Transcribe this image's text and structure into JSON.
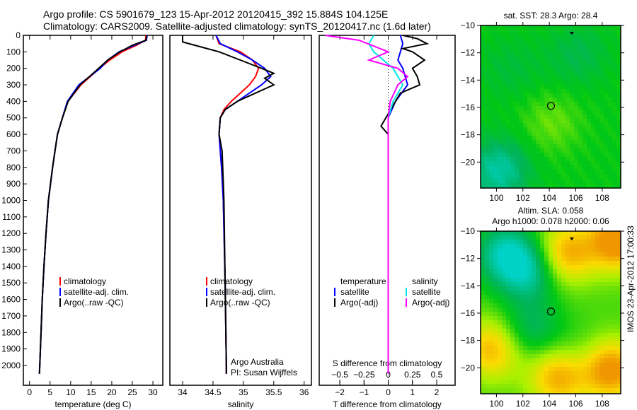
{
  "header": {
    "line1": "Argo profile: CS 5901679_123 15-Apr-2012 20120415_392 15.884S 104.125E",
    "line2": "Climatology: CARS2009. Satellite-adjusted climatology: synTS_20120417.nc (1.6d later)"
  },
  "side_label": "IMOS 23-Apr-2012 17:00:33",
  "chart_data": [
    {
      "type": "line",
      "title": "",
      "xlabel": "temperature (deg C)",
      "ylabel": "",
      "xlim": [
        -1.5,
        32.4
      ],
      "ylim": [
        2120,
        0
      ],
      "xticks": [
        0,
        5,
        10,
        15,
        20,
        25,
        30
      ],
      "yticks": [
        0,
        100,
        200,
        300,
        400,
        500,
        600,
        700,
        800,
        900,
        1000,
        1100,
        1200,
        1300,
        1400,
        1500,
        1600,
        1700,
        1800,
        1900,
        2000
      ],
      "legend": [
        "climatology",
        "satellite-adj. clim.",
        "Argo(..raw -QC)"
      ],
      "legend_position": "lower-right",
      "series": [
        {
          "name": "climatology",
          "color": "#ff0000",
          "depth": [
            0,
            30,
            60,
            100,
            150,
            200,
            300,
            400,
            500,
            600,
            700,
            800,
            1000,
            1200,
            1400,
            1600,
            1800,
            2000,
            2050
          ],
          "values": [
            28.3,
            28.2,
            26,
            22.5,
            19.5,
            17,
            12.5,
            9.3,
            8,
            6.8,
            6.2,
            5.6,
            4.6,
            4,
            3.5,
            3.1,
            2.8,
            2.5,
            2.4
          ]
        },
        {
          "name": "satellite-adj. clim.",
          "color": "#0000ff",
          "depth": [
            0,
            30,
            60,
            100,
            150,
            200,
            300,
            400,
            500,
            600,
            700,
            800,
            1000,
            1200,
            1400,
            1600,
            1800,
            2000,
            2050
          ],
          "values": [
            28.6,
            28.4,
            25.5,
            21.8,
            19,
            17.2,
            12,
            9.2,
            8,
            6.8,
            6.2,
            5.6,
            4.6,
            4,
            3.5,
            3.1,
            2.8,
            2.5,
            2.4
          ]
        },
        {
          "name": "Argo(..raw -QC)",
          "color": "#000000",
          "depth": [
            0,
            30,
            60,
            100,
            150,
            200,
            300,
            400,
            500,
            600,
            700,
            800,
            1000,
            1200,
            1400,
            1600,
            1800,
            2000,
            2050
          ],
          "values": [
            28.5,
            28.3,
            25,
            22,
            19,
            16.8,
            12.3,
            9.4,
            8,
            6.8,
            6.2,
            5.6,
            4.6,
            4,
            3.5,
            3.1,
            2.8,
            2.5,
            2.4
          ]
        }
      ]
    },
    {
      "type": "line",
      "xlabel": "salinity",
      "xlim": [
        33.79,
        36.12
      ],
      "ylim": [
        2120,
        0
      ],
      "xticks": [
        34,
        34.5,
        35,
        35.5,
        36
      ],
      "legend": [
        "climatology",
        "satellite-adj. clim.",
        "Argo(..raw -QC)"
      ],
      "legend_position": "lower-right",
      "annotation": [
        "Argo Australia",
        "PI: Susan Wijffels"
      ],
      "series": [
        {
          "name": "climatology",
          "color": "#ff0000",
          "depth": [
            0,
            50,
            100,
            150,
            200,
            250,
            300,
            350,
            400,
            450,
            500,
            600,
            800,
            1000,
            1500,
            2000,
            2050
          ],
          "values": [
            34.55,
            34.6,
            34.95,
            35.15,
            35.25,
            35.2,
            35.1,
            34.95,
            34.8,
            34.68,
            34.62,
            34.6,
            34.64,
            34.67,
            34.7,
            34.72,
            34.72
          ]
        },
        {
          "name": "satellite-adj. clim.",
          "color": "#0000ff",
          "depth": [
            0,
            50,
            100,
            150,
            200,
            250,
            300,
            350,
            400,
            450,
            500,
            600,
            800,
            1000,
            1500,
            2000,
            2050
          ],
          "values": [
            34.55,
            34.62,
            34.9,
            35.15,
            35.35,
            35.45,
            35.3,
            35.1,
            34.9,
            34.7,
            34.62,
            34.6,
            34.64,
            34.67,
            34.7,
            34.72,
            34.72
          ]
        },
        {
          "name": "Argo(..raw -QC)",
          "color": "#000000",
          "depth": [
            0,
            40,
            60,
            100,
            150,
            200,
            230,
            260,
            300,
            350,
            400,
            450,
            500,
            600,
            700,
            1000,
            2000,
            2050
          ],
          "values": [
            34.0,
            34.0,
            34.2,
            34.6,
            34.95,
            35.3,
            35.5,
            35.35,
            35.5,
            35.2,
            34.9,
            34.7,
            34.62,
            34.6,
            34.65,
            34.68,
            34.72,
            34.72
          ]
        }
      ]
    },
    {
      "type": "line",
      "xlabel": "T difference from climatology",
      "xlabel2": "S difference from climatology",
      "xlim": [
        -2.85,
        2.76
      ],
      "ylim": [
        2120,
        0
      ],
      "xticks": [
        -2,
        -1,
        0,
        1,
        2
      ],
      "xticks_S": [
        -0.5,
        -0.25,
        0,
        0.25,
        0.5
      ],
      "S_scale": 4,
      "legend_headers": [
        "temperature",
        "salinity"
      ],
      "legend": [
        "satellite",
        "Argo(-adj)",
        "satellite",
        "Argo(-adj)"
      ],
      "series": [
        {
          "name": "T satellite",
          "color": "#0000ff",
          "depth": [
            0,
            50,
            100,
            150,
            200,
            300,
            400,
            500,
            600,
            2050
          ],
          "values": [
            0.5,
            0.6,
            0.5,
            0.4,
            0.6,
            0.8,
            0.3,
            0,
            0,
            0
          ]
        },
        {
          "name": "T Argo(-adj)",
          "color": "#000000",
          "depth": [
            0,
            20,
            50,
            80,
            100,
            150,
            200,
            250,
            300,
            350,
            400,
            450,
            550,
            600,
            700,
            2050
          ],
          "values": [
            0.6,
            1.2,
            1.6,
            0.6,
            1.0,
            1.5,
            1.0,
            1.2,
            1.3,
            0.5,
            0.3,
            0.1,
            -0.3,
            0,
            0,
            0
          ]
        },
        {
          "name": "S satellite",
          "color": "#00e5e5",
          "depth": [
            0,
            50,
            100,
            150,
            200,
            300,
            400,
            500,
            600,
            2050
          ],
          "values": [
            -0.15,
            -0.2,
            -0.15,
            -0.05,
            0.05,
            0.15,
            0.05,
            0,
            0,
            0
          ]
        },
        {
          "name": "S Argo(-adj)",
          "color": "#ff00ff",
          "depth": [
            0,
            30,
            100,
            150,
            200,
            250,
            300,
            400,
            500,
            2050
          ],
          "values": [
            -0.65,
            -0.3,
            0,
            -0.2,
            0.1,
            0.2,
            0.1,
            0.02,
            0,
            0
          ]
        }
      ]
    },
    {
      "type": "heatmap",
      "title": "sat. SST: 28.3 Argo: 28.4",
      "xlim": [
        98.8,
        109.4
      ],
      "ylim": [
        -21.9,
        -10
      ],
      "xticks": [
        100,
        102,
        104,
        106,
        108
      ],
      "yticks": [
        -10,
        -12,
        -14,
        -16,
        -18,
        -20
      ],
      "marker": [
        104.125,
        -15.884
      ]
    },
    {
      "type": "heatmap",
      "title": "Altim. SLA: 0.058",
      "title2": "Argo h1000: 0.078 h2000: 0.06",
      "xlim": [
        98.8,
        109.4
      ],
      "ylim": [
        -21.9,
        -10
      ],
      "xticks": [
        100,
        102,
        104,
        106,
        108
      ],
      "yticks": [
        -10,
        -12,
        -14,
        -16,
        -18,
        -20
      ],
      "marker": [
        104.125,
        -15.884
      ]
    }
  ]
}
